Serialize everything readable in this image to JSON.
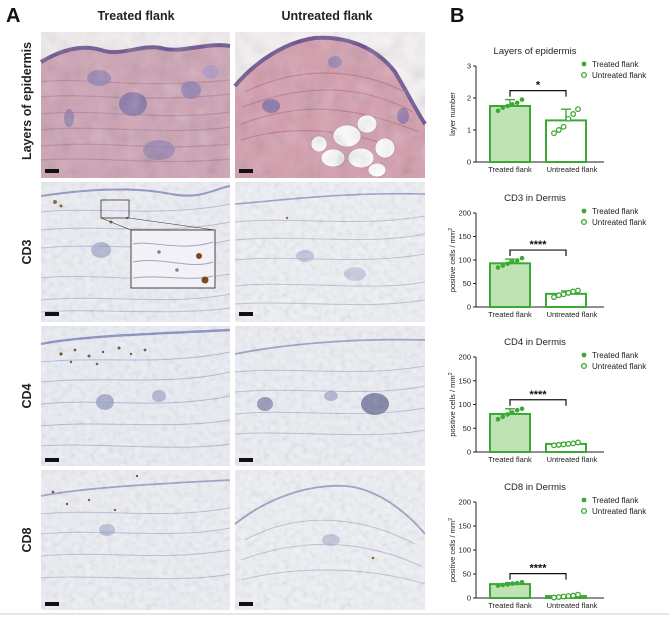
{
  "panel_a": {
    "letter": "A",
    "columns": [
      "Treated flank",
      "Untreated flank"
    ],
    "rows": [
      {
        "label": "Layers of epidermis",
        "stain": "he"
      },
      {
        "label": "CD3",
        "stain": "ihc"
      },
      {
        "label": "CD4",
        "stain": "ihc"
      },
      {
        "label": "CD8",
        "stain": "ihc"
      }
    ]
  },
  "panel_b": {
    "letter": "B"
  },
  "colors": {
    "accent_green": "#3aaa35",
    "bar_fill": "#bfe3b2",
    "he_pink": "#d9a9b8",
    "ihc_bg": "#e9ecf4"
  },
  "chart_data": [
    {
      "type": "bar",
      "title": "Layers of epidermis",
      "ylabel": "layer number",
      "categories": [
        "Treated flank",
        "Untreated flank"
      ],
      "values": [
        1.75,
        1.3
      ],
      "errors": [
        0.2,
        0.35
      ],
      "points": [
        [
          1.6,
          1.7,
          1.75,
          1.8,
          1.85,
          1.95
        ],
        [
          0.9,
          1.0,
          1.1,
          1.35,
          1.5,
          1.65
        ]
      ],
      "ylim": [
        0,
        3
      ],
      "yticks": [
        0,
        1,
        2,
        3
      ],
      "significance": "*",
      "legend": [
        "Treated flank",
        "Untreated flank"
      ],
      "legend_position": "top-right"
    },
    {
      "type": "bar",
      "title": "CD3 in Dermis",
      "ylabel": "positive cells / mm",
      "ylabel_sup": "2",
      "categories": [
        "Treated flank",
        "Untreated flank"
      ],
      "values": [
        93,
        28
      ],
      "errors": [
        9,
        6
      ],
      "points": [
        [
          84,
          88,
          92,
          96,
          99,
          104
        ],
        [
          21,
          25,
          27,
          30,
          33,
          35
        ]
      ],
      "ylim": [
        0,
        200
      ],
      "yticks": [
        0,
        50,
        100,
        150,
        200
      ],
      "significance": "****",
      "legend": [
        "Treated flank",
        "Untreated flank"
      ],
      "legend_position": "top-right"
    },
    {
      "type": "bar",
      "title": "CD4 in Dermis",
      "ylabel": "positive cells / mm",
      "ylabel_sup": "2",
      "categories": [
        "Treated flank",
        "Untreated flank"
      ],
      "values": [
        80,
        17
      ],
      "errors": [
        11,
        3
      ],
      "points": [
        [
          69,
          74,
          79,
          83,
          88,
          91
        ],
        [
          14,
          15,
          16,
          17,
          18,
          20
        ]
      ],
      "ylim": [
        0,
        200
      ],
      "yticks": [
        0,
        50,
        100,
        150,
        200
      ],
      "significance": "****",
      "legend": [
        "Treated flank",
        "Untreated flank"
      ],
      "legend_position": "top-right"
    },
    {
      "type": "bar",
      "title": "CD8 in Dermis",
      "ylabel": "positive cells / mm",
      "ylabel_sup": "2",
      "categories": [
        "Treated flank",
        "Untreated flank"
      ],
      "values": [
        29,
        4
      ],
      "errors": [
        3,
        2
      ],
      "points": [
        [
          26,
          27,
          28,
          30,
          31,
          33
        ],
        [
          1,
          2,
          3,
          4,
          5,
          7
        ]
      ],
      "ylim": [
        0,
        200
      ],
      "yticks": [
        0,
        50,
        100,
        150,
        200
      ],
      "significance": "****",
      "legend": [
        "Treated flank",
        "Untreated flank"
      ],
      "legend_position": "top-right"
    }
  ]
}
